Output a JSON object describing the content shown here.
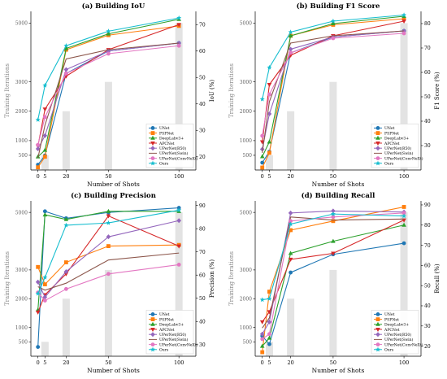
{
  "shared": {
    "x_label": "Number of Shots",
    "left_label": "Training Iterations",
    "bar_color": "#e3e3e3",
    "left_ticks": [
      500,
      1000,
      2000,
      3000,
      5000
    ],
    "left_range": [
      0,
      5400
    ]
  },
  "chart_data": [
    {
      "type": "line",
      "title": "(a) Building IoU",
      "xlabel": "Number of Shots",
      "ylabel": "Training Iterations",
      "y2label": "IoU (%)",
      "x": [
        0,
        5,
        20,
        50,
        100
      ],
      "xlim": [
        -5,
        112
      ],
      "y2lim": [
        15,
        75
      ],
      "y2_ticks": [
        20,
        30,
        40,
        50,
        60,
        70
      ],
      "bars": [
        0,
        500,
        2000,
        3000,
        5000
      ],
      "legend": "bottom-right",
      "series": [
        {
          "name": "UNet",
          "color": "#1f77b4",
          "marker": "circle",
          "values": [
            17.0,
            20.5,
            51.5,
            60.0,
            63.0
          ]
        },
        {
          "name": "PSPNet",
          "color": "#ff7f0e",
          "marker": "square",
          "values": [
            16.0,
            20.0,
            60.5,
            66.0,
            69.5
          ]
        },
        {
          "name": "DeepLabv3+",
          "color": "#2ca02c",
          "marker": "triangle-up",
          "values": [
            20.0,
            22.5,
            61.0,
            66.5,
            72.0
          ]
        },
        {
          "name": "APCNet",
          "color": "#d62728",
          "marker": "triangle-down",
          "values": [
            24.0,
            38.0,
            50.5,
            60.5,
            70.0
          ]
        },
        {
          "name": "UPerNet(R50)",
          "color": "#9467bd",
          "marker": "diamond",
          "values": [
            23.0,
            28.0,
            53.0,
            60.0,
            63.0
          ]
        },
        {
          "name": "UPerNet(Swin)",
          "color": "#8c564b",
          "marker": "none",
          "values": [
            19.5,
            32.0,
            57.0,
            60.5,
            63.0
          ]
        },
        {
          "name": "UPerNet(ConvNeXt)",
          "color": "#e377c2",
          "marker": "circle",
          "values": [
            24.5,
            35.0,
            51.5,
            59.0,
            62.0
          ]
        },
        {
          "name": "Ours",
          "color": "#17becf",
          "marker": "star",
          "values": [
            34.0,
            47.0,
            62.0,
            67.5,
            72.5
          ]
        }
      ]
    },
    {
      "type": "line",
      "title": "(b) Building F1 Score",
      "xlabel": "Number of Shots",
      "ylabel": "Training Iterations",
      "y2label": "F1 Score (%)",
      "x": [
        0,
        5,
        20,
        50,
        100
      ],
      "xlim": [
        -5,
        112
      ],
      "y2lim": [
        20,
        85
      ],
      "y2_ticks": [
        30,
        40,
        50,
        60,
        70,
        80
      ],
      "bars": [
        0,
        500,
        2000,
        3000,
        5000
      ],
      "legend": "bottom-right",
      "series": [
        {
          "name": "UNet",
          "color": "#1f77b4",
          "marker": "circle",
          "values": [
            23.0,
            27.5,
            68.0,
            74.5,
            77.0
          ]
        },
        {
          "name": "PSPNet",
          "color": "#ff7f0e",
          "marker": "square",
          "values": [
            21.0,
            27.0,
            75.0,
            79.5,
            82.0
          ]
        },
        {
          "name": "DeepLabv3+",
          "color": "#2ca02c",
          "marker": "triangle-up",
          "values": [
            25.5,
            31.5,
            75.0,
            80.0,
            83.0
          ]
        },
        {
          "name": "APCNet",
          "color": "#d62728",
          "marker": "triangle-down",
          "values": [
            31.5,
            55.0,
            67.0,
            75.0,
            81.0
          ]
        },
        {
          "name": "UPerNet(R50)",
          "color": "#9467bd",
          "marker": "diamond",
          "values": [
            28.5,
            43.0,
            69.5,
            74.5,
            77.0
          ]
        },
        {
          "name": "UPerNet(Swin)",
          "color": "#8c564b",
          "marker": "none",
          "values": [
            27.0,
            48.0,
            72.0,
            75.0,
            77.0
          ]
        },
        {
          "name": "UPerNet(ConvNeXt)",
          "color": "#e377c2",
          "marker": "circle",
          "values": [
            34.0,
            51.0,
            68.0,
            74.0,
            76.0
          ]
        },
        {
          "name": "Ours",
          "color": "#17becf",
          "marker": "star",
          "values": [
            49.0,
            62.0,
            76.5,
            81.0,
            83.5
          ]
        }
      ]
    },
    {
      "type": "line",
      "title": "(c) Building Precision",
      "xlabel": "Number of Shots",
      "ylabel": "Training Iterations",
      "y2label": "Precision (%)",
      "x": [
        0,
        5,
        20,
        50,
        100
      ],
      "xlim": [
        -5,
        112
      ],
      "y2lim": [
        25,
        92
      ],
      "y2_ticks": [
        30,
        40,
        50,
        60,
        70,
        80,
        90
      ],
      "bars": [
        0,
        500,
        2000,
        3000,
        5000
      ],
      "legend": "bottom-right",
      "series": [
        {
          "name": "UNet",
          "color": "#1f77b4",
          "marker": "circle",
          "values": [
            29.0,
            87.5,
            84.5,
            87.0,
            89.0
          ]
        },
        {
          "name": "PSPNet",
          "color": "#ff7f0e",
          "marker": "square",
          "values": [
            63.5,
            56.0,
            65.5,
            72.5,
            73.0
          ]
        },
        {
          "name": "DeepLabv3+",
          "color": "#2ca02c",
          "marker": "triangle-up",
          "values": [
            45.0,
            86.0,
            84.0,
            87.5,
            87.5
          ]
        },
        {
          "name": "APCNet",
          "color": "#d62728",
          "marker": "triangle-down",
          "values": [
            44.0,
            51.5,
            60.5,
            85.5,
            72.5
          ]
        },
        {
          "name": "UPerNet(R50)",
          "color": "#9467bd",
          "marker": "diamond",
          "values": [
            57.0,
            50.5,
            61.5,
            76.5,
            83.5
          ]
        },
        {
          "name": "UPerNet(Swin)",
          "color": "#8c564b",
          "marker": "none",
          "values": [
            55.0,
            53.5,
            56.5,
            66.5,
            69.5
          ]
        },
        {
          "name": "UPerNet(ConvNeXt)",
          "color": "#e377c2",
          "marker": "circle",
          "values": [
            52.5,
            49.0,
            54.0,
            60.5,
            64.5
          ]
        },
        {
          "name": "Ours",
          "color": "#17becf",
          "marker": "star",
          "values": [
            52.0,
            59.0,
            81.5,
            82.5,
            88.0
          ]
        }
      ]
    },
    {
      "type": "line",
      "title": "(d) Building Recall",
      "xlabel": "Number of Shots",
      "ylabel": "Training Iterations",
      "y2label": "Recall (%)",
      "x": [
        0,
        5,
        20,
        50,
        100
      ],
      "xlim": [
        -5,
        112
      ],
      "y2lim": [
        15,
        92
      ],
      "y2_ticks": [
        20,
        30,
        40,
        50,
        60,
        70,
        80,
        90
      ],
      "bars": [
        0,
        500,
        2000,
        3000,
        5000
      ],
      "legend": "bottom-right",
      "series": [
        {
          "name": "UNet",
          "color": "#1f77b4",
          "marker": "circle",
          "values": [
            25.0,
            21.0,
            56.5,
            65.5,
            71.0
          ]
        },
        {
          "name": "PSPNet",
          "color": "#ff7f0e",
          "marker": "square",
          "values": [
            17.0,
            47.0,
            77.5,
            82.0,
            89.0
          ]
        },
        {
          "name": "DeepLabv3+",
          "color": "#2ca02c",
          "marker": "triangle-up",
          "values": [
            20.0,
            24.0,
            66.0,
            72.0,
            80.0
          ]
        },
        {
          "name": "APCNet",
          "color": "#d62728",
          "marker": "triangle-down",
          "values": [
            32.0,
            37.0,
            63.0,
            66.0,
            82.5
          ]
        },
        {
          "name": "UPerNet(R50)",
          "color": "#9467bd",
          "marker": "diamond",
          "values": [
            26.0,
            32.0,
            86.0,
            87.0,
            86.5
          ]
        },
        {
          "name": "UPerNet(Swin)",
          "color": "#8c564b",
          "marker": "none",
          "values": [
            29.0,
            34.0,
            84.0,
            82.5,
            83.0
          ]
        },
        {
          "name": "UPerNet(ConvNeXt)",
          "color": "#e377c2",
          "marker": "circle",
          "values": [
            23.5,
            26.0,
            82.0,
            84.0,
            86.0
          ]
        },
        {
          "name": "Ours",
          "color": "#17becf",
          "marker": "star",
          "values": [
            43.0,
            43.5,
            80.5,
            85.5,
            84.5
          ]
        }
      ]
    }
  ]
}
